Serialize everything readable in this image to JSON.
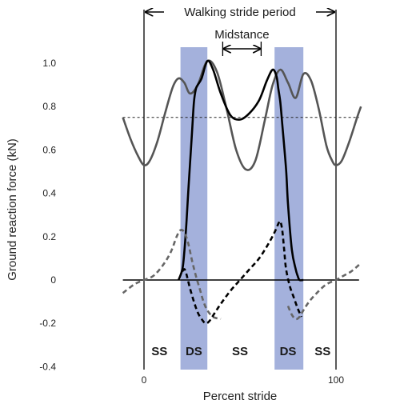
{
  "chart_data": {
    "type": "line",
    "ylabel": "Ground reaction force (kN)",
    "xlabel": "Percent stride",
    "xlim": [
      -12,
      150
    ],
    "ylim": [
      -0.4,
      1.12
    ],
    "x_ticks": [
      0,
      100
    ],
    "y_ticks": [
      1.0,
      0.8,
      0.6,
      0.4,
      0.2,
      0,
      -0.2,
      -0.4
    ],
    "y_tick_labels": [
      "1.0",
      "0.8",
      "0.6",
      "0.4",
      "0.2",
      "0",
      "-0.2",
      "-0.4"
    ],
    "x_tick_labels": [
      "0",
      "100"
    ],
    "stride_start": 0,
    "stride_end": 100,
    "threshold_y": 0.75,
    "zero_line_x": [
      -11,
      112
    ],
    "double_support_bands": [
      [
        19,
        33
      ],
      [
        68,
        83
      ]
    ],
    "phase_labels": [
      {
        "text": "SS",
        "x": 8
      },
      {
        "text": "DS",
        "x": 26
      },
      {
        "text": "SS",
        "x": 50
      },
      {
        "text": "DS",
        "x": 75
      },
      {
        "text": "SS",
        "x": 93
      }
    ],
    "annotations": {
      "stride_period": "Walking stride period",
      "midstance": "Midstance",
      "midstance_range": [
        41,
        61
      ]
    },
    "series": [
      {
        "role": "vertical-total",
        "color": "#555555",
        "dashed": false,
        "x": [
          -11,
          -7,
          -3,
          0,
          3,
          7,
          11,
          15,
          18,
          21,
          24,
          28,
          33,
          38,
          43,
          48,
          53,
          58,
          63,
          67,
          71,
          75,
          79,
          83,
          87,
          91,
          95,
          98,
          100,
          103,
          107,
          111,
          113
        ],
        "y": [
          0.75,
          0.65,
          0.57,
          0.53,
          0.55,
          0.64,
          0.77,
          0.89,
          0.93,
          0.91,
          0.86,
          0.9,
          1.01,
          0.96,
          0.79,
          0.6,
          0.51,
          0.55,
          0.74,
          0.9,
          0.97,
          0.91,
          0.84,
          0.95,
          0.92,
          0.79,
          0.62,
          0.55,
          0.53,
          0.55,
          0.64,
          0.75,
          0.8
        ]
      },
      {
        "role": "vertical-limb",
        "color": "#000000",
        "dashed": false,
        "x": [
          18,
          20,
          21,
          22,
          23,
          25,
          26,
          27,
          28,
          30,
          33,
          36,
          40,
          45,
          50,
          55,
          60,
          64,
          67,
          69,
          70,
          71,
          72,
          74,
          75,
          77,
          79,
          80,
          81,
          83
        ],
        "y": [
          0,
          0.05,
          0.13,
          0.25,
          0.4,
          0.68,
          0.82,
          0.88,
          0.9,
          0.93,
          1.01,
          0.97,
          0.86,
          0.76,
          0.74,
          0.77,
          0.83,
          0.92,
          0.97,
          0.94,
          0.88,
          0.82,
          0.72,
          0.51,
          0.35,
          0.14,
          0.05,
          0.02,
          0.0,
          0.0
        ]
      },
      {
        "role": "fore-aft-total",
        "color": "#666666",
        "dashed": true,
        "x": [
          -11,
          -5,
          0,
          5,
          10,
          14,
          17,
          19,
          21,
          23,
          25,
          27,
          29,
          31,
          33,
          36,
          40
        ],
        "y": [
          -0.06,
          -0.02,
          0.0,
          0.02,
          0.07,
          0.13,
          0.2,
          0.23,
          0.22,
          0.17,
          0.09,
          0.02,
          -0.04,
          -0.1,
          -0.14,
          -0.17,
          -0.18
        ]
      },
      {
        "role": "fore-aft-limb",
        "color": "#000000",
        "dashed": true,
        "x": [
          20,
          21,
          22,
          24,
          26,
          28,
          30,
          32,
          34,
          37,
          40,
          45,
          50,
          55,
          60,
          65,
          68,
          70,
          71,
          72,
          73,
          74,
          76,
          78,
          80,
          82
        ],
        "y": [
          0.04,
          0.05,
          0.03,
          -0.04,
          -0.1,
          -0.15,
          -0.18,
          -0.2,
          -0.19,
          -0.15,
          -0.11,
          -0.05,
          0.0,
          0.05,
          0.1,
          0.17,
          0.22,
          0.26,
          0.27,
          0.23,
          0.14,
          0.05,
          -0.03,
          -0.08,
          -0.13,
          -0.17
        ]
      },
      {
        "role": "fore-aft-total-right",
        "color": "#666666",
        "dashed": true,
        "x": [
          75,
          77,
          79,
          81,
          83,
          86,
          90,
          95,
          100,
          104,
          108,
          112
        ],
        "y": [
          -0.12,
          -0.16,
          -0.18,
          -0.17,
          -0.14,
          -0.1,
          -0.06,
          -0.02,
          0.0,
          0.02,
          0.04,
          0.07
        ]
      }
    ]
  }
}
